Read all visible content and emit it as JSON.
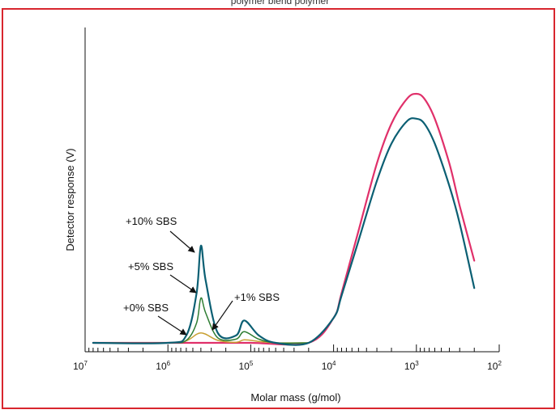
{
  "top_caption": "polymer blend polymer",
  "chart_data": {
    "type": "line",
    "title": "",
    "xlabel": "Molar mass (g/mol)",
    "ylabel": "Detector response (V)",
    "x_scale": "log",
    "x_reversed": true,
    "xlim": [
      10000000,
      100
    ],
    "x_ticks": [
      {
        "base": "10",
        "exp": "7"
      },
      {
        "base": "10",
        "exp": "6"
      },
      {
        "base": "10",
        "exp": "5"
      },
      {
        "base": "10",
        "exp": "4"
      },
      {
        "base": "10",
        "exp": "3"
      },
      {
        "base": "10",
        "exp": "2"
      }
    ],
    "ylim": [
      0,
      1
    ],
    "grid": false,
    "series": [
      {
        "name": "+0% SBS",
        "color": "#e0306a",
        "x": [
          8000000,
          1000000,
          300000,
          100000,
          20000,
          10000,
          8000,
          5000,
          3000,
          2000,
          1300,
          1000,
          800,
          600,
          400,
          300,
          200
        ],
        "y": [
          0.0,
          0.0,
          0.0,
          0.0,
          0.0,
          0.1,
          0.2,
          0.45,
          0.72,
          0.88,
          0.98,
          1.0,
          0.98,
          0.9,
          0.72,
          0.55,
          0.33
        ]
      },
      {
        "name": "+1% SBS",
        "color": "#c8a032",
        "x": [
          8000000,
          1000000,
          600000,
          400000,
          250000,
          150000,
          120000,
          80000,
          50000,
          20000
        ],
        "y": [
          0.0,
          0.0,
          0.008,
          0.04,
          0.01,
          0.002,
          0.012,
          0.006,
          0.0,
          0.0
        ]
      },
      {
        "name": "+5% SBS",
        "color": "#2e7d32",
        "x": [
          8000000,
          1000000,
          600000,
          450000,
          400000,
          350000,
          250000,
          150000,
          120000,
          80000,
          50000,
          20000
        ],
        "y": [
          0.0,
          0.0,
          0.01,
          0.08,
          0.18,
          0.12,
          0.02,
          0.015,
          0.045,
          0.015,
          0.0,
          0.0
        ]
      },
      {
        "name": "+10% SBS",
        "color": "#0b5f73",
        "x": [
          8000000,
          1000000,
          600000,
          450000,
          400000,
          350000,
          250000,
          150000,
          120000,
          80000,
          50000,
          20000,
          10000,
          8000,
          5000,
          3000,
          2000,
          1300,
          1000,
          800,
          600,
          400,
          300,
          200
        ],
        "y": [
          0.0,
          0.0,
          0.03,
          0.2,
          0.39,
          0.25,
          0.04,
          0.03,
          0.09,
          0.03,
          0.0,
          0.0,
          0.1,
          0.19,
          0.41,
          0.65,
          0.8,
          0.89,
          0.9,
          0.88,
          0.8,
          0.63,
          0.48,
          0.22
        ]
      }
    ],
    "annotations": [
      {
        "text": "+10% SBS"
      },
      {
        "text": "+5% SBS"
      },
      {
        "text": "+0% SBS"
      },
      {
        "text": "+1% SBS"
      }
    ]
  }
}
